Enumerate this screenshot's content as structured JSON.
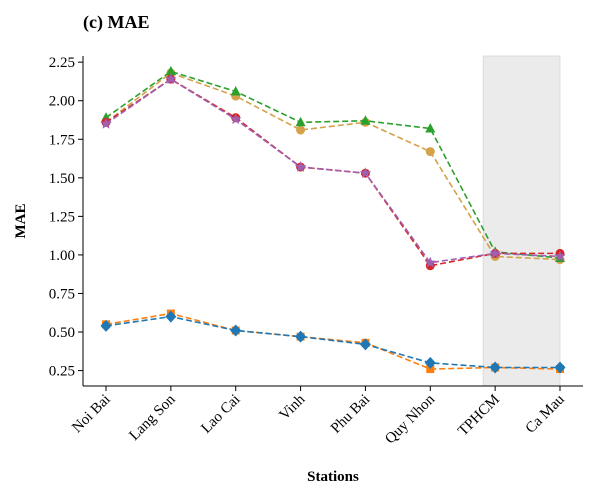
{
  "chart_data": {
    "type": "line",
    "title": "(c) MAE",
    "xlabel": "Stations",
    "ylabel": "MAE",
    "categories": [
      "Noi Bai",
      "Lang Son",
      "Lao Cai",
      "Vinh",
      "Phu Bai",
      "Quy Nhon",
      "TPHCM",
      "Ca Mau"
    ],
    "ylim": [
      0.15,
      2.29
    ],
    "yticks": [
      "0.25",
      "0.50",
      "0.75",
      "1.00",
      "1.25",
      "1.50",
      "1.75",
      "2.00",
      "2.25"
    ],
    "grid": false,
    "highlight_region": {
      "from_category": "TPHCM",
      "to_category": "Ca Mau",
      "color": "#ebebeb"
    },
    "series": [
      {
        "color": "#d4a24a",
        "marker": "circle",
        "values": [
          1.86,
          2.18,
          2.03,
          1.81,
          1.86,
          1.67,
          0.99,
          0.97
        ]
      },
      {
        "color": "#2ca02c",
        "marker": "triangle",
        "values": [
          1.89,
          2.19,
          2.06,
          1.86,
          1.87,
          1.82,
          1.02,
          0.98
        ]
      },
      {
        "color": "#d62728",
        "marker": "circle",
        "values": [
          1.86,
          2.14,
          1.89,
          1.57,
          1.53,
          0.93,
          1.01,
          1.01
        ]
      },
      {
        "color": "#a05fb0",
        "marker": "star",
        "values": [
          1.85,
          2.14,
          1.88,
          1.57,
          1.53,
          0.95,
          1.01,
          0.99
        ]
      },
      {
        "color": "#ff7f0e",
        "marker": "square",
        "values": [
          0.55,
          0.62,
          0.51,
          0.47,
          0.43,
          0.26,
          0.27,
          0.26
        ]
      },
      {
        "color": "#1f77b4",
        "marker": "diamond",
        "values": [
          0.54,
          0.6,
          0.51,
          0.47,
          0.42,
          0.3,
          0.27,
          0.27
        ]
      }
    ]
  }
}
